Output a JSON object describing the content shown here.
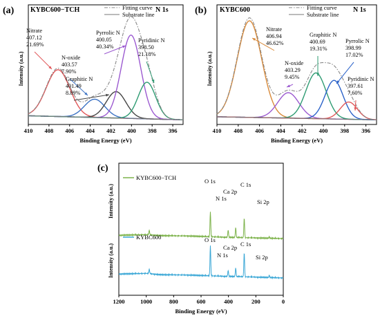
{
  "chart_data": [
    {
      "panel_label": "(a)",
      "title": "KYBC600−TCH",
      "corner_label": "N 1s",
      "type": "line",
      "xlabel": "Binding Energy (eV)",
      "ylabel": "Intensity (a.u.)",
      "xlim": [
        410,
        395
      ],
      "x_ticks": [
        410,
        408,
        406,
        404,
        402,
        400,
        398,
        396
      ],
      "x_tick_labels": [
        "410",
        "408",
        "406",
        "404",
        "402",
        "400",
        "398",
        "396"
      ],
      "legend": [
        "Fitting curve",
        "Substrate line"
      ],
      "legend_placement": "top",
      "baseline": {
        "x": [
          410,
          395
        ],
        "y": [
          0.045,
          0.005
        ]
      },
      "peaks": [
        {
          "name": "Nitrate",
          "center": 407.12,
          "percent": "21.69%",
          "height": 0.46,
          "width": 1.15,
          "color": "#e15759"
        },
        {
          "name": "N-oxide",
          "center": 403.57,
          "percent": "7.90%",
          "height": 0.18,
          "width": 1.0,
          "color": "#3b72c4"
        },
        {
          "name": "Graphitic N",
          "center": 401.49,
          "percent": "8.89%",
          "height": 0.26,
          "width": 0.95,
          "color": "#444444"
        },
        {
          "name": "Pyrrolic N",
          "center": 400.05,
          "percent": "40.34%",
          "height": 0.82,
          "width": 0.95,
          "color": "#9b59d0"
        },
        {
          "name": "Pyridinic N",
          "center": 398.5,
          "percent": "21.18%",
          "height": 0.36,
          "width": 0.85,
          "color": "#2e9b72"
        }
      ],
      "annotations": [
        {
          "lines": [
            "Nitrate",
            "407.12",
            "21.69%"
          ]
        },
        {
          "lines": [
            "N-oxide",
            "403.57",
            "7.90%"
          ]
        },
        {
          "lines": [
            "Graphitic N",
            "401.49",
            "8.89%"
          ]
        },
        {
          "lines": [
            "Pyrrolic N",
            "400.05",
            "40.34%"
          ]
        },
        {
          "lines": [
            "Pyridinic N",
            "398.50",
            "21.18%"
          ]
        }
      ]
    },
    {
      "panel_label": "(b)",
      "title": "KYBC600",
      "corner_label": "N 1s",
      "type": "line",
      "xlabel": "Binding Energy (eV)",
      "ylabel": "Intensity (a.u.)",
      "xlim": [
        410,
        395
      ],
      "x_ticks": [
        410,
        408,
        406,
        404,
        402,
        400,
        398,
        396
      ],
      "x_tick_labels": [
        "410",
        "408",
        "406",
        "404",
        "402",
        "400",
        "398",
        "396"
      ],
      "legend": [
        "Fitting curve",
        "Substrate line"
      ],
      "legend_placement": "top",
      "baseline": {
        "x": [
          410,
          395
        ],
        "y": [
          0.035,
          0.005
        ]
      },
      "peaks": [
        {
          "name": "Nitrate",
          "center": 406.94,
          "percent": "46.62%",
          "height": 0.95,
          "width": 1.15,
          "color": "#d98a3a"
        },
        {
          "name": "N-oxide",
          "center": 403.29,
          "percent": "9.45%",
          "height": 0.25,
          "width": 1.0,
          "color": "#9b59d0"
        },
        {
          "name": "Graphitic N",
          "center": 400.69,
          "percent": "19.31%",
          "height": 0.45,
          "width": 0.95,
          "color": "#2e9b72"
        },
        {
          "name": "Pyrrolic N",
          "center": 398.99,
          "percent": "17.02%",
          "height": 0.38,
          "width": 0.85,
          "color": "#2b62c9"
        },
        {
          "name": "Pyridinic N",
          "center": 397.61,
          "percent": "7.60%",
          "height": 0.17,
          "width": 0.8,
          "color": "#e15759"
        }
      ],
      "annotations": [
        {
          "lines": [
            "Nitrate",
            "406.94",
            "46.62%"
          ]
        },
        {
          "lines": [
            "N-oxide",
            "403.29",
            "9.45%"
          ]
        },
        {
          "lines": [
            "Graphitic N",
            "400.69",
            "19.31%"
          ]
        },
        {
          "lines": [
            "Pyrrolic N",
            "398.99",
            "17.02%"
          ]
        },
        {
          "lines": [
            "Pyridinic N",
            "397.61",
            "7.60%"
          ]
        }
      ]
    },
    {
      "panel_label": "(c)",
      "type": "line",
      "xlabel": "Binding Energy (eV)",
      "ylabel": "Intensity (a.u.)",
      "xlim": [
        1200,
        0
      ],
      "x_ticks": [
        1200,
        1000,
        800,
        600,
        400,
        200,
        0
      ],
      "x_tick_labels": [
        "1200",
        "1000",
        "800",
        "600",
        "400",
        "200",
        "0"
      ],
      "series": [
        {
          "name": "KYBC600−TCH",
          "color": "#7cb24a",
          "level": 0.6,
          "background": [
            [
              1200,
              0.05
            ],
            [
              1000,
              0.06
            ],
            [
              900,
              0.045
            ],
            [
              700,
              0.04
            ],
            [
              560,
              0.03
            ],
            [
              420,
              0.02
            ],
            [
              300,
              0.015
            ],
            [
              0,
              0.0
            ]
          ],
          "features": [
            [
              978,
              0.07
            ],
            [
              532,
              0.38
            ],
            [
              402,
              0.11
            ],
            [
              347,
              0.15
            ],
            [
              285,
              0.3
            ],
            [
              102,
              0.02
            ]
          ]
        },
        {
          "name": "KYBC600",
          "color": "#3aa7d6",
          "level": 0.0,
          "background": [
            [
              1200,
              0.06
            ],
            [
              1000,
              0.07
            ],
            [
              900,
              0.05
            ],
            [
              700,
              0.045
            ],
            [
              560,
              0.035
            ],
            [
              420,
              0.025
            ],
            [
              300,
              0.02
            ],
            [
              0,
              0.0
            ]
          ],
          "features": [
            [
              978,
              0.07
            ],
            [
              532,
              0.46
            ],
            [
              402,
              0.09
            ],
            [
              347,
              0.13
            ],
            [
              285,
              0.37
            ],
            [
              102,
              0.03
            ]
          ]
        }
      ],
      "peak_labels": [
        {
          "series": 0,
          "text": "O 1s",
          "x": 532
        },
        {
          "series": 0,
          "text": "N 1s",
          "x": 402
        },
        {
          "series": 0,
          "text": "Ca 2p",
          "x": 347
        },
        {
          "series": 0,
          "text": "C 1s",
          "x": 285
        },
        {
          "series": 0,
          "text": "Si 2p",
          "x": 102
        },
        {
          "series": 1,
          "text": "O 1s",
          "x": 532
        },
        {
          "series": 1,
          "text": "N 1s",
          "x": 402
        },
        {
          "series": 1,
          "text": "Ca 2p",
          "x": 347
        },
        {
          "series": 1,
          "text": "C 1s",
          "x": 285
        },
        {
          "series": 1,
          "text": "Si 2p",
          "x": 102
        }
      ]
    }
  ]
}
